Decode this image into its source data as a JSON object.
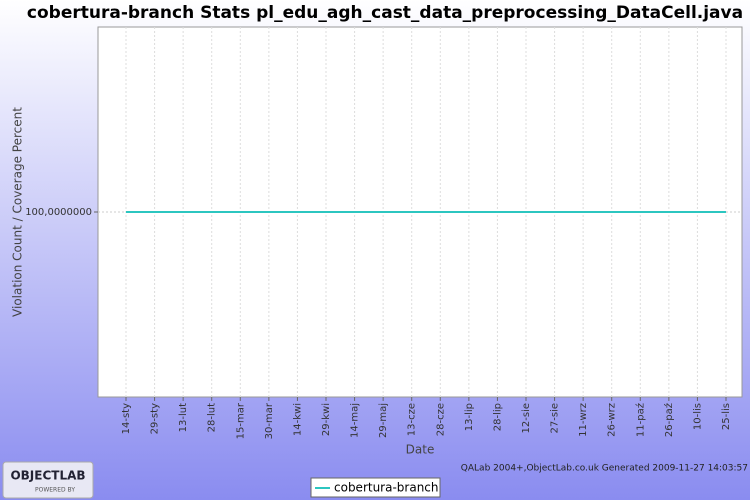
{
  "chart_data": {
    "type": "line",
    "title": "cobertura-branch  Stats pl_edu_agh_cast_data_preprocessing_DataCell.java",
    "x_label": "Date",
    "y_label": "Violation Count / Coverage Percent",
    "footer": "QALab 2004+,ObjectLab.co.uk Generated 2009-11-27 14:03:57",
    "categories": [
      "14-sty",
      "29-sty",
      "13-lut",
      "28-lut",
      "15-mar",
      "30-mar",
      "14-kwi",
      "29-kwi",
      "14-maj",
      "29-maj",
      "13-cze",
      "28-cze",
      "13-lip",
      "28-lip",
      "12-sie",
      "27-sie",
      "11-wrz",
      "26-wrz",
      "11-paź",
      "26-paź",
      "10-lis",
      "25-lis"
    ],
    "series": [
      {
        "name": "cobertura-branch",
        "color": "#2cc6c0",
        "values": [
          100,
          100,
          100,
          100,
          100,
          100,
          100,
          100,
          100,
          100,
          100,
          100,
          100,
          100,
          100,
          100,
          100,
          100,
          100,
          100,
          100,
          100
        ]
      }
    ],
    "ylim": [
      0,
      200
    ],
    "yticks": [
      {
        "value": 100,
        "label": "100,0000000"
      }
    ],
    "grid": true,
    "legend": "bottom"
  },
  "logo": {
    "name": "OBJECTLAB",
    "tagline": "POWERED BY"
  }
}
